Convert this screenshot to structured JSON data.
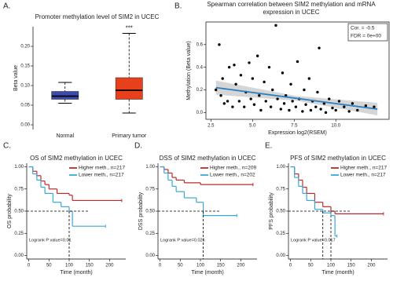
{
  "chart_data": [
    {
      "type": "box",
      "label": "A.",
      "title": "Promoter methylation level of SIM2 in UCEC",
      "y_label": "Beta value",
      "categories": [
        "Normal",
        "Primary tumor"
      ],
      "colors": [
        "#3a4cb0",
        "#e8401c"
      ],
      "min": [
        0.055,
        0.03
      ],
      "q1": [
        0.065,
        0.065
      ],
      "median": [
        0.073,
        0.088
      ],
      "q3": [
        0.085,
        0.12
      ],
      "max": [
        0.108,
        0.233
      ],
      "annotation": "***",
      "ylim": [
        -0.012,
        0.25
      ],
      "yticks": [
        {
          "value": 0,
          "label": "0.00"
        },
        {
          "value": 0.05,
          "label": "0.05"
        },
        {
          "value": 0.1,
          "label": "0.10"
        },
        {
          "value": 0.15,
          "label": "0.15"
        },
        {
          "value": 0.2,
          "label": "0.20"
        }
      ]
    },
    {
      "type": "scatter",
      "label": "B.",
      "title": [
        "Spearman correlation between SIM2 methylation and mRNA",
        "expression in UCEC"
      ],
      "x_label": "Expression log2(RSEM)",
      "y_label": "Methylation (Beta value)",
      "legend": [
        "Cor. = -0.5",
        "FDR = 0e+00"
      ],
      "color": "#000000",
      "fit_color": "#2a7fc1",
      "x": [
        2.8,
        3.0,
        3.1,
        3.2,
        3.3,
        3.5,
        3.6,
        3.8,
        3.9,
        4.0,
        4.2,
        4.3,
        4.5,
        4.6,
        4.8,
        4.9,
        5.0,
        5.1,
        5.3,
        5.4,
        5.5,
        5.7,
        5.8,
        6.0,
        6.1,
        6.2,
        6.4,
        6.5,
        6.7,
        6.8,
        6.9,
        7.0,
        7.2,
        7.3,
        7.4,
        7.6,
        7.7,
        7.8,
        8.0,
        8.1,
        8.2,
        8.4,
        8.5,
        8.6,
        8.8,
        8.9,
        9.0,
        9.1,
        9.3,
        9.4,
        9.6,
        9.8,
        10.0,
        10.2,
        10.5,
        10.8,
        11.0,
        11.3,
        11.8,
        12.3
      ],
      "values": [
        0.2,
        0.6,
        0.15,
        0.3,
        0.08,
        0.1,
        0.4,
        0.05,
        0.42,
        0.25,
        0.1,
        0.33,
        0.05,
        0.18,
        0.44,
        0.12,
        0.3,
        0.07,
        0.5,
        0.15,
        0.02,
        0.27,
        0.1,
        0.4,
        0.05,
        0.2,
        0.77,
        0.12,
        0.03,
        0.35,
        0.08,
        0.15,
        0.02,
        0.25,
        0.1,
        0.05,
        0.45,
        0.12,
        0.01,
        0.2,
        0.07,
        0.3,
        0.02,
        0.1,
        0.05,
        0.18,
        0.57,
        0.03,
        0.08,
        0.0,
        0.12,
        0.04,
        0.02,
        0.1,
        0.05,
        0.01,
        0.08,
        0.02,
        0.06,
        0.05
      ],
      "fit": {
        "x": [
          2.8,
          12.5
        ],
        "values": [
          0.22,
          0.03
        ]
      },
      "xlim": [
        2.2,
        13.2
      ],
      "ylim": [
        -0.06,
        0.8
      ],
      "xticks": [
        {
          "value": 2.5,
          "label": "2.5"
        },
        {
          "value": 5,
          "label": "5.0"
        },
        {
          "value": 7.5,
          "label": "7.5"
        },
        {
          "value": 10,
          "label": "10.0"
        }
      ],
      "yticks": [
        {
          "value": 0,
          "label": "0.0"
        },
        {
          "value": 0.2,
          "label": "0.2"
        },
        {
          "value": 0.4,
          "label": "0.4"
        },
        {
          "value": 0.6,
          "label": "0.6"
        }
      ]
    },
    {
      "type": "line",
      "step": true,
      "label": "C.",
      "title": "OS of SIM2 methylation in UCEC",
      "x_label": "Time (month)",
      "y_label": "OS probability",
      "annotation": "Logrank P value=0.01",
      "series": [
        {
          "name": "Higher meth., n=217",
          "color": "#c0282a",
          "x": [
            0,
            10,
            20,
            30,
            40,
            50,
            70,
            100,
            108,
            230
          ],
          "values": [
            1,
            0.95,
            0.9,
            0.84,
            0.8,
            0.75,
            0.7,
            0.68,
            0.62,
            0.62
          ]
        },
        {
          "name": "Lower meth., n=217",
          "color": "#3aa7d9",
          "x": [
            0,
            10,
            20,
            30,
            40,
            60,
            80,
            100,
            108,
            190
          ],
          "values": [
            1,
            0.92,
            0.85,
            0.77,
            0.7,
            0.6,
            0.55,
            0.5,
            0.33,
            0.33
          ]
        }
      ],
      "xlim": [
        -5,
        240
      ],
      "ylim": [
        -0.04,
        1.04
      ],
      "xticks": [
        0,
        50,
        100,
        150,
        200
      ],
      "yticks": [
        {
          "value": 0,
          "label": "0.00"
        },
        {
          "value": 0.25,
          "label": "0.25"
        },
        {
          "value": 0.5,
          "label": "0.50"
        },
        {
          "value": 0.75,
          "label": "0.75"
        },
        {
          "value": 1,
          "label": "1.00"
        }
      ]
    },
    {
      "type": "line",
      "step": true,
      "label": "D.",
      "title": "DSS of SIM2 methylation in UCEC",
      "x_label": "Time (month)",
      "y_label": "DSS probability",
      "annotation": "Logrank P value=0.026",
      "series": [
        {
          "name": "Higher meth., n=209",
          "color": "#c0282a",
          "x": [
            0,
            10,
            20,
            30,
            40,
            60,
            100,
            230
          ],
          "values": [
            1,
            0.97,
            0.93,
            0.88,
            0.85,
            0.82,
            0.8,
            0.8
          ]
        },
        {
          "name": "Lower meth., n=202",
          "color": "#3aa7d9",
          "x": [
            0,
            10,
            20,
            30,
            40,
            60,
            90,
            107,
            190
          ],
          "values": [
            1,
            0.93,
            0.85,
            0.78,
            0.72,
            0.65,
            0.6,
            0.45,
            0.45
          ]
        }
      ],
      "xlim": [
        -5,
        240
      ],
      "ylim": [
        -0.04,
        1.04
      ],
      "xticks": [
        0,
        50,
        100,
        150,
        200
      ],
      "yticks": [
        {
          "value": 0,
          "label": "0.00"
        },
        {
          "value": 0.25,
          "label": "0.25"
        },
        {
          "value": 0.5,
          "label": "0.50"
        },
        {
          "value": 0.75,
          "label": "0.75"
        },
        {
          "value": 1,
          "label": "1.00"
        }
      ]
    },
    {
      "type": "line",
      "step": true,
      "label": "E.",
      "title": "PFS of SIM2 methylation in UCEC",
      "x_label": "Time (month)",
      "y_label": "PFS probability",
      "annotation": "Logrank P value=0.017",
      "series": [
        {
          "name": "Higher meth., n=217",
          "color": "#c0282a",
          "x": [
            0,
            10,
            20,
            30,
            40,
            60,
            80,
            100,
            110,
            230
          ],
          "values": [
            1,
            0.92,
            0.85,
            0.77,
            0.7,
            0.6,
            0.55,
            0.5,
            0.47,
            0.47
          ]
        },
        {
          "name": "Lower meth., n=217",
          "color": "#3aa7d9",
          "x": [
            0,
            10,
            20,
            30,
            40,
            60,
            80,
            100,
            110,
            115
          ],
          "values": [
            1,
            0.88,
            0.78,
            0.7,
            0.62,
            0.52,
            0.48,
            0.45,
            0.22,
            0.22
          ]
        }
      ],
      "xlim": [
        -5,
        240
      ],
      "ylim": [
        -0.04,
        1.04
      ],
      "xticks": [
        0,
        50,
        100,
        150,
        200
      ],
      "yticks": [
        {
          "value": 0,
          "label": "0.00"
        },
        {
          "value": 0.25,
          "label": "0.25"
        },
        {
          "value": 0.5,
          "label": "0.50"
        },
        {
          "value": 0.75,
          "label": "0.75"
        },
        {
          "value": 1,
          "label": "1.00"
        }
      ]
    }
  ]
}
